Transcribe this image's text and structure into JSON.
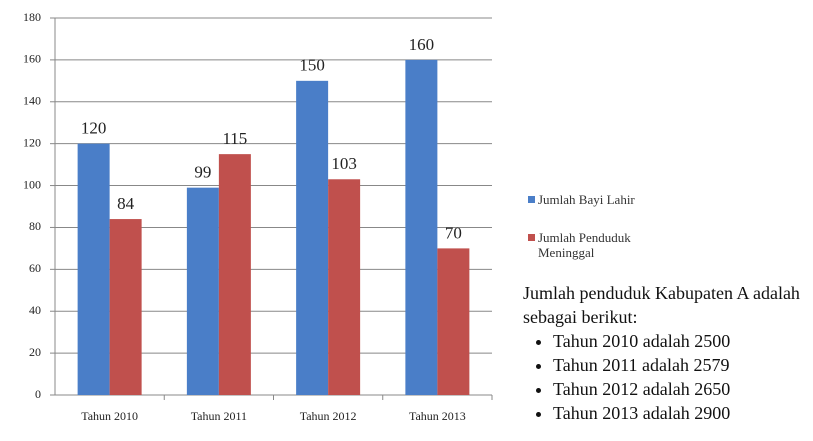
{
  "chart_data": {
    "type": "bar",
    "categories": [
      "Tahun 2010",
      "Tahun 2011",
      "Tahun 2012",
      "Tahun 2013"
    ],
    "series": [
      {
        "name": "Jumlah Bayi Lahir",
        "color": "#4a7ec8",
        "values": [
          120,
          99,
          150,
          160
        ]
      },
      {
        "name": "Jumlah Penduduk Meninggal",
        "color": "#c0504d",
        "values": [
          84,
          115,
          103,
          70
        ]
      }
    ],
    "ylim": [
      0,
      180
    ],
    "yticks": [
      0,
      20,
      40,
      60,
      80,
      100,
      120,
      140,
      160,
      180
    ],
    "grid": true,
    "legend": "right"
  },
  "note": {
    "intro": "Jumlah penduduk Kabupaten A adalah sebagai berikut:",
    "items": [
      "Tahun 2010 adalah 2500",
      "Tahun 2011 adalah 2579",
      "Tahun 2012 adalah 2650",
      "Tahun 2013 adalah 2900"
    ]
  }
}
